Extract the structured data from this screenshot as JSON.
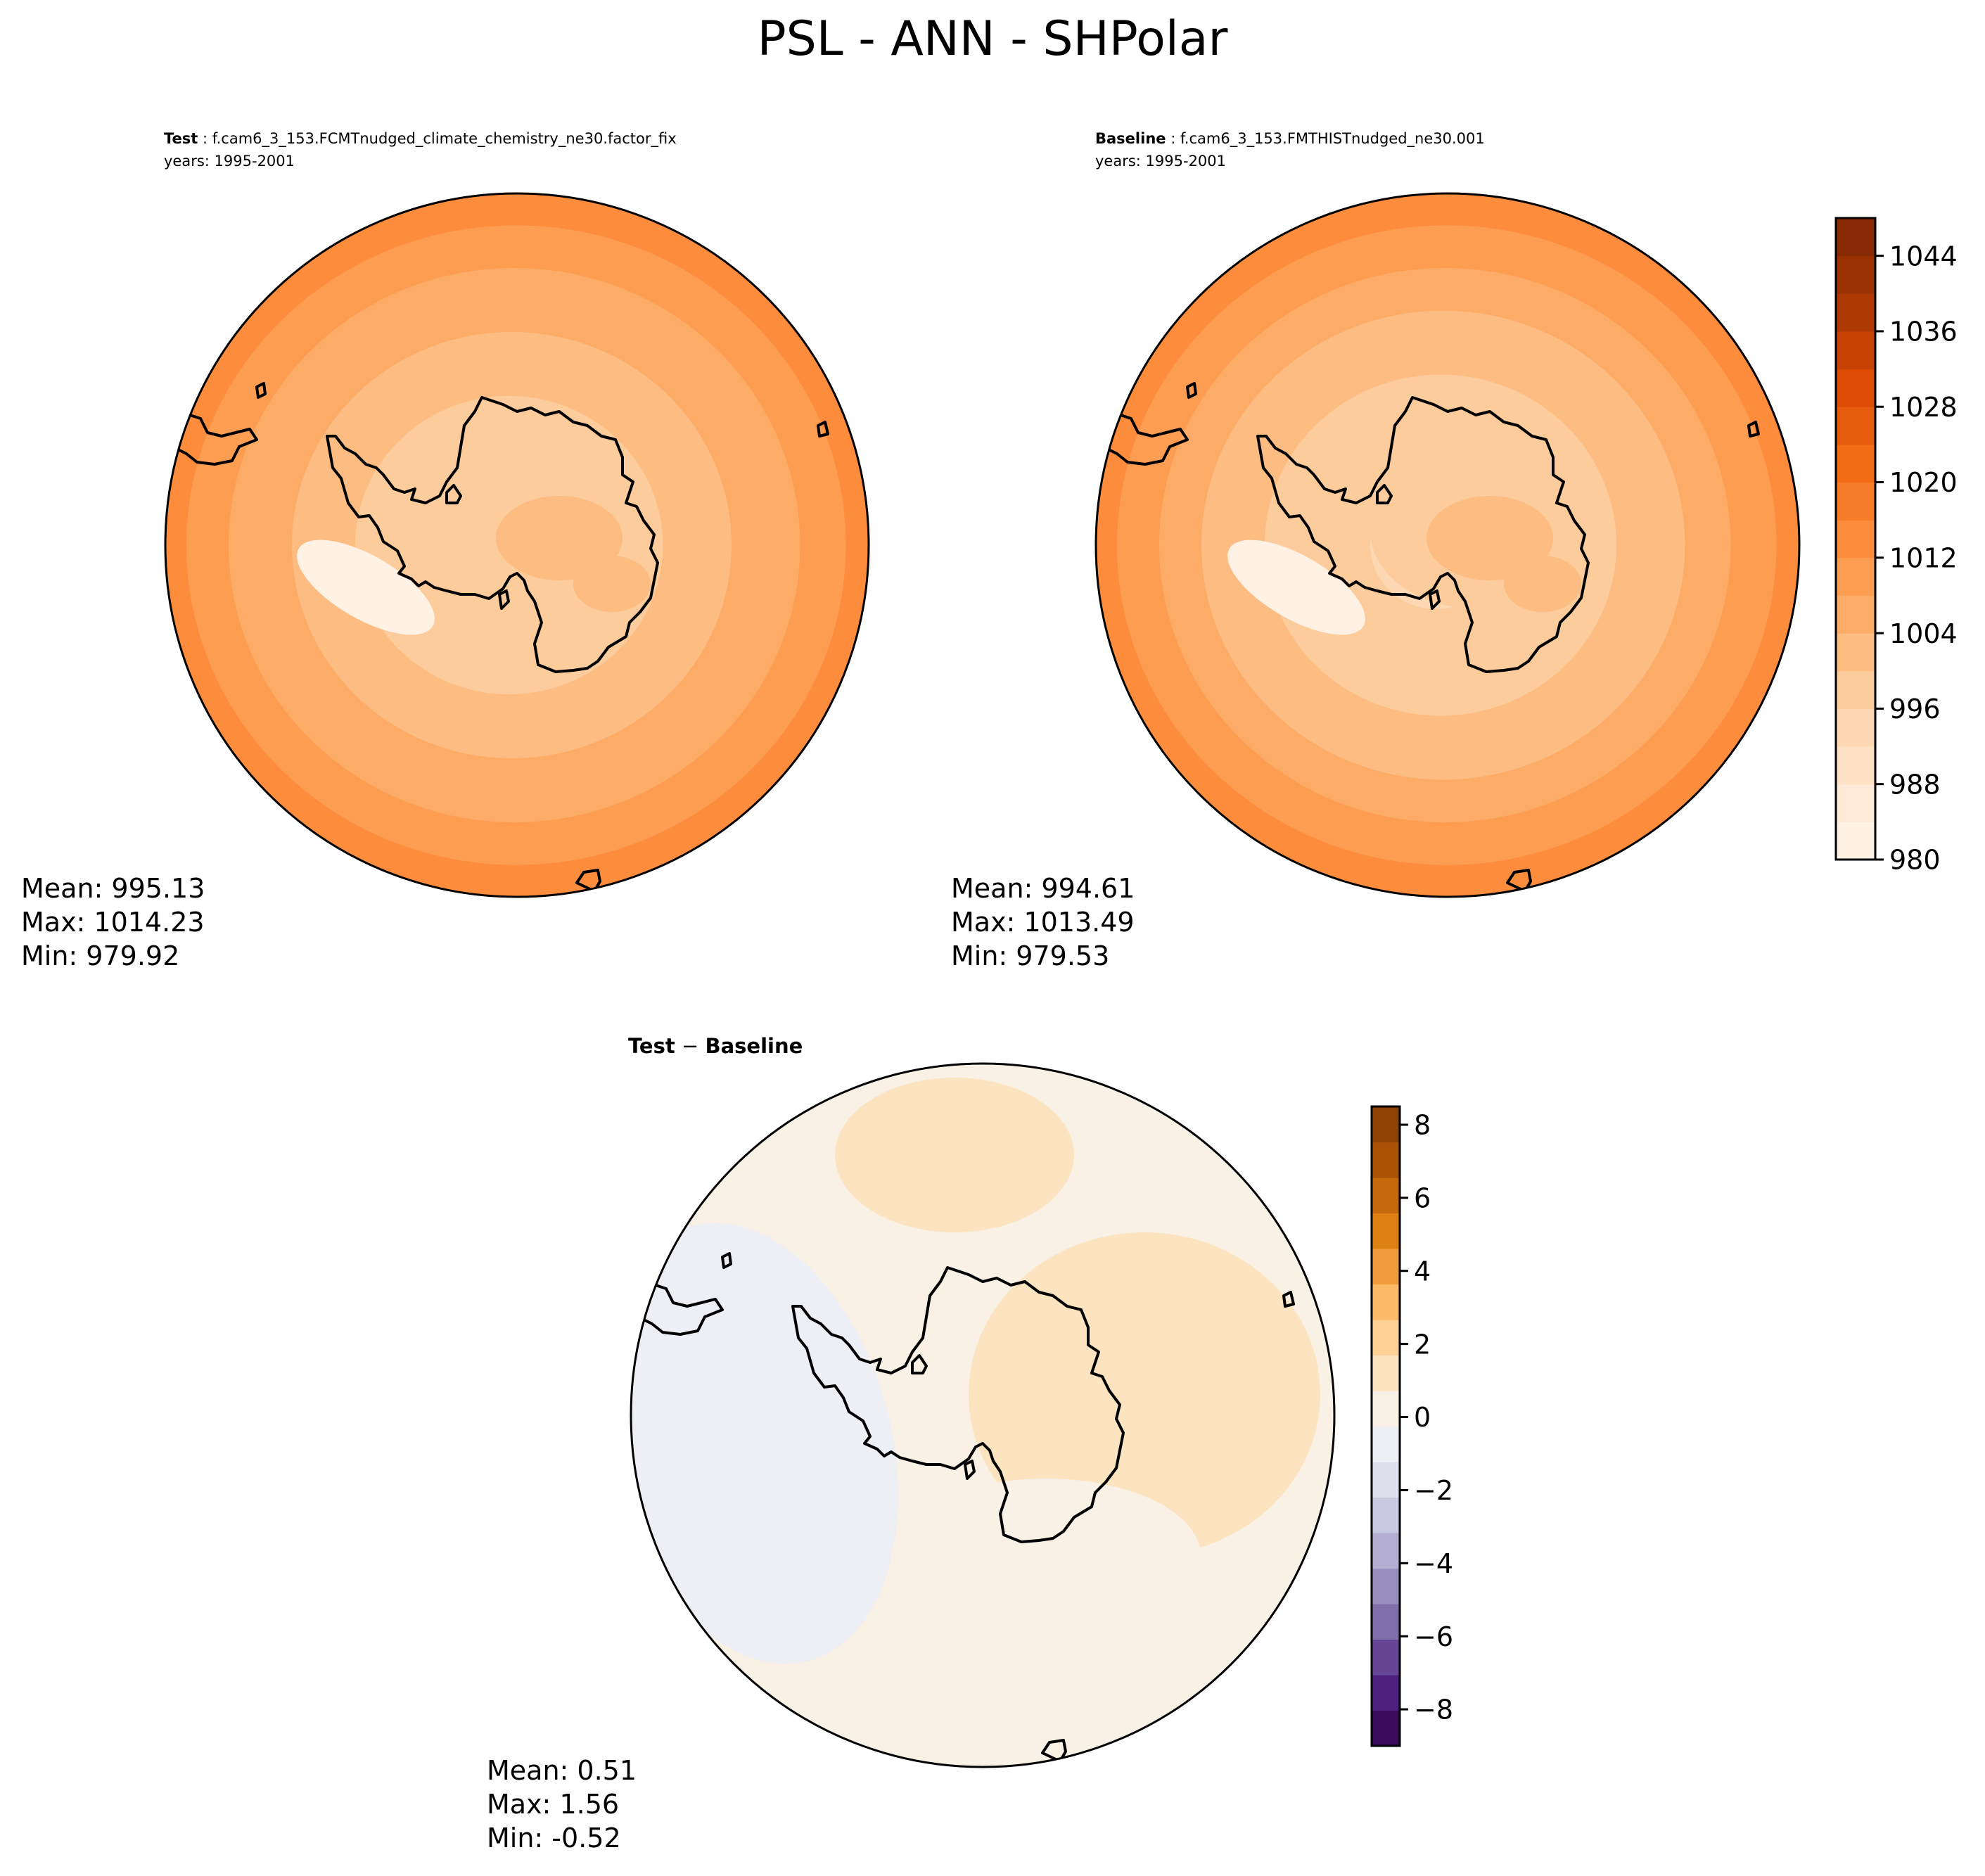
{
  "figure": {
    "title": "PSL - ANN - SHPolar"
  },
  "chart_data": [
    {
      "type": "heatmap",
      "projection": "south-polar-stereographic",
      "label_bold": "Test",
      "label_rest": " : f.cam6_3_153.FCMTnudged_climate_chemistry_ne30.factor_fix",
      "years": "years: 1995-2001",
      "stats": [
        "Mean: 995.13",
        "Max: 1014.23",
        "Min: 979.92"
      ],
      "mean": 995.13,
      "max": 1014.23,
      "min": 979.92,
      "field": {
        "pole_value": 996,
        "edge_value": 1014,
        "ross_low": 979,
        "ice_plateau": 1003
      }
    },
    {
      "type": "heatmap",
      "projection": "south-polar-stereographic",
      "label_bold": "Baseline",
      "label_rest": " : f.cam6_3_153.FMTHISTnudged_ne30.001",
      "years": "years: 1995-2001",
      "stats": [
        "Mean: 994.61",
        "Max: 1013.49",
        "Min: 979.53"
      ],
      "mean": 994.61,
      "max": 1013.49,
      "min": 979.53,
      "field": {
        "pole_value": 995,
        "edge_value": 1013.5,
        "ross_low": 979,
        "ice_plateau": 1002
      }
    },
    {
      "type": "heatmap",
      "projection": "south-polar-stereographic",
      "label_bold": "Test",
      "label_mid": " − ",
      "label_bold2": "Baseline",
      "stats": [
        "Mean:  0.51",
        "Max:  1.56",
        "Min: -0.52"
      ],
      "mean": 0.51,
      "max": 1.56,
      "min": -0.52,
      "field": {
        "positive_peak": 1.5,
        "negative_peak": -0.5
      }
    }
  ],
  "colorbars": [
    {
      "range": [
        980,
        1048
      ],
      "ticks": [
        980,
        988,
        996,
        1004,
        1012,
        1020,
        1028,
        1036,
        1044
      ],
      "tick_labels": [
        "980",
        "988",
        "996",
        "1004",
        "1012",
        "1020",
        "1028",
        "1036",
        "1044"
      ],
      "levels": 17,
      "colormap": "Oranges",
      "colors": [
        "#fff5eb",
        "#fee6ce",
        "#fdd0a2",
        "#fdae6b",
        "#fd8d3c",
        "#f16913",
        "#d94801",
        "#a63603",
        "#7f2704"
      ]
    },
    {
      "range": [
        -9,
        8.5
      ],
      "ticks": [
        -8,
        -6,
        -4,
        -2,
        0,
        2,
        4,
        6,
        8
      ],
      "tick_labels": [
        "−8",
        "−6",
        "−4",
        "−2",
        "0",
        "2",
        "4",
        "6",
        "8"
      ],
      "levels": 18,
      "colormap": "PuOr_r",
      "colors": [
        "#2d004b",
        "#542788",
        "#8073ac",
        "#b2abd2",
        "#d8daeb",
        "#f7f7f7",
        "#fee0b6",
        "#fdb863",
        "#e08214",
        "#b35806",
        "#7f3b08"
      ]
    }
  ]
}
